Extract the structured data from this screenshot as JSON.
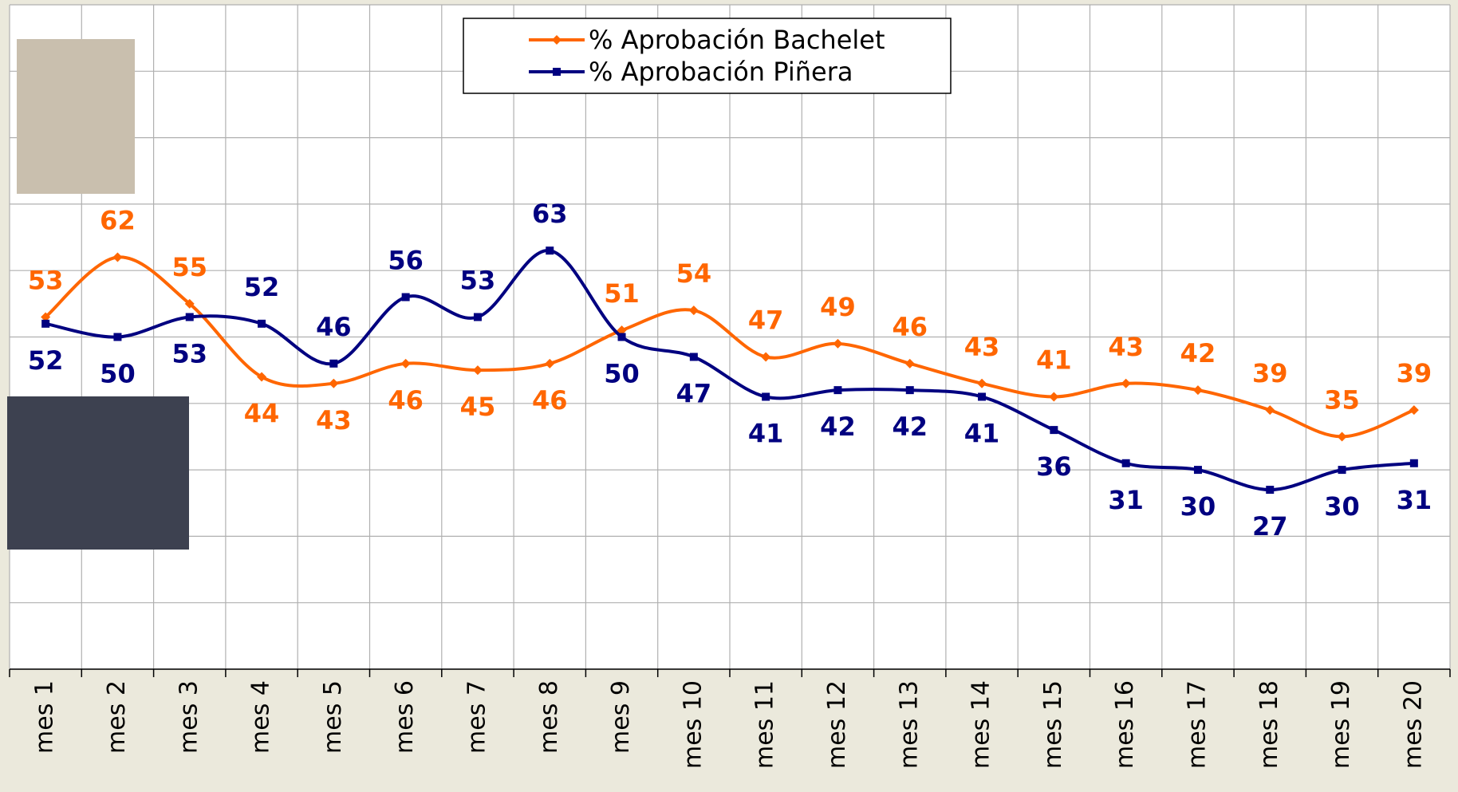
{
  "chart_data": {
    "type": "line",
    "categories": [
      "mes 1",
      "mes 2",
      "mes 3",
      "mes 4",
      "mes 5",
      "mes 6",
      "mes 7",
      "mes 8",
      "mes 9",
      "mes 10",
      "mes 11",
      "mes 12",
      "mes 13",
      "mes 14",
      "mes 15",
      "mes 16",
      "mes 17",
      "mes 18",
      "mes 19",
      "mes 20"
    ],
    "series": [
      {
        "name": "% Aprobación Bachelet",
        "color": "#ff6600",
        "marker": "diamond",
        "values": [
          53,
          62,
          55,
          44,
          43,
          46,
          45,
          46,
          51,
          54,
          47,
          49,
          46,
          43,
          41,
          43,
          42,
          39,
          35,
          39
        ]
      },
      {
        "name": "% Aprobación Piñera",
        "color": "#000080",
        "marker": "square",
        "values": [
          52,
          50,
          53,
          52,
          46,
          56,
          53,
          63,
          50,
          47,
          41,
          42,
          42,
          41,
          36,
          31,
          30,
          27,
          30,
          31
        ]
      }
    ],
    "ylim": [
      0,
      100
    ],
    "yticks": [
      0,
      10,
      20,
      30,
      40,
      50,
      60,
      70,
      80,
      90,
      100
    ],
    "grid": true,
    "smooth": true,
    "legend": "top"
  }
}
